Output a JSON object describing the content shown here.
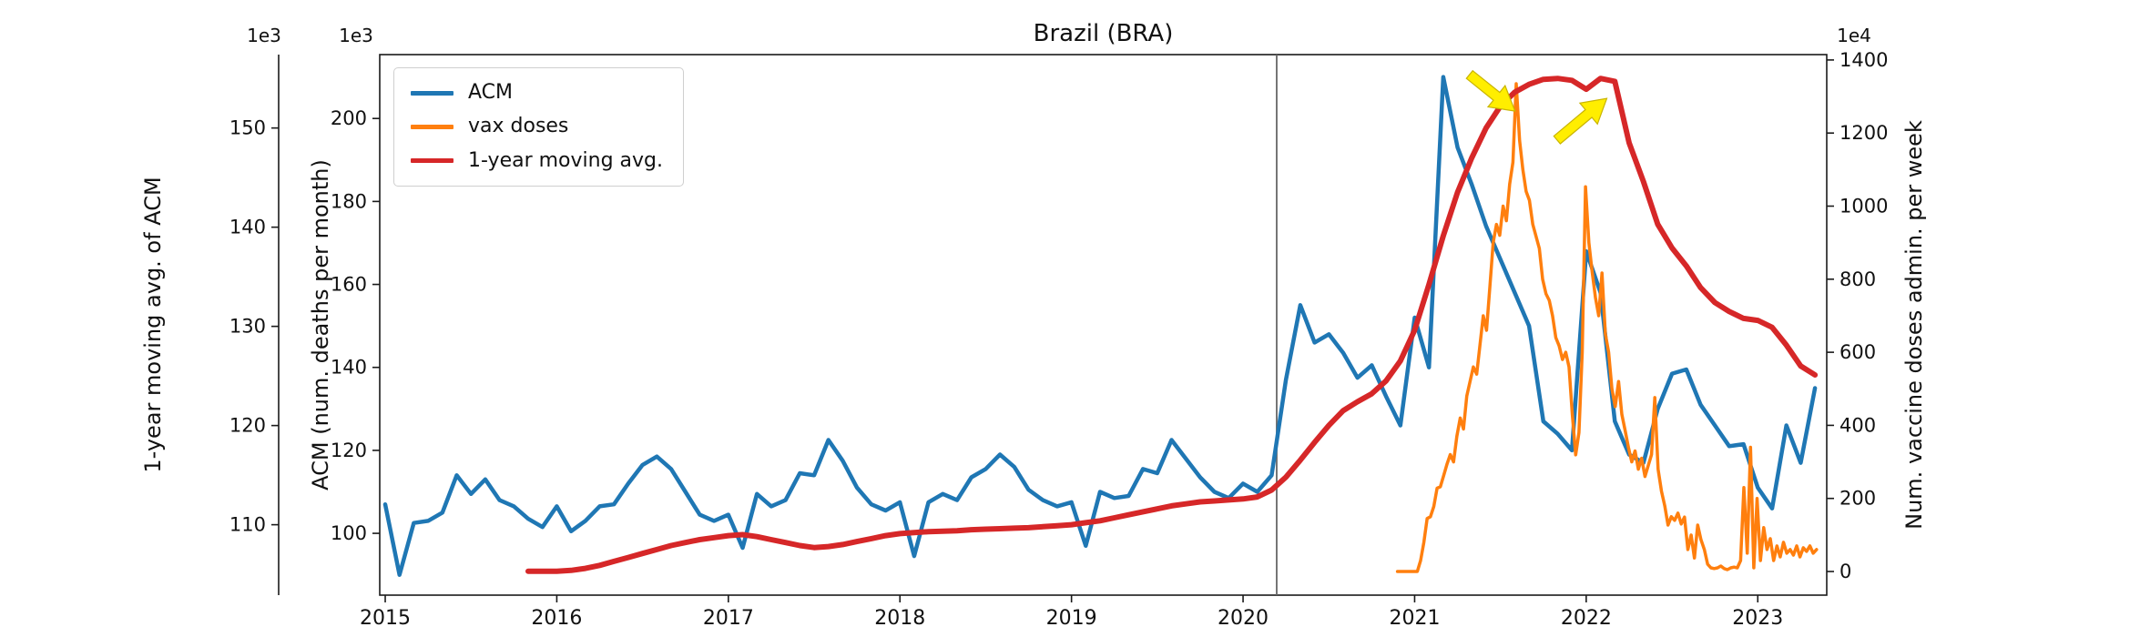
{
  "title": "Brazil (BRA)",
  "legend": {
    "items": [
      {
        "label": "ACM",
        "color": "#1f77b4"
      },
      {
        "label": "vax doses",
        "color": "#ff7f0e"
      },
      {
        "label": "1-year moving avg.",
        "color": "#d62728"
      }
    ]
  },
  "axes": {
    "x": {
      "ticks": [
        2015,
        2016,
        2017,
        2018,
        2019,
        2020,
        2021,
        2022,
        2023
      ],
      "range": [
        2014.968,
        2023.402
      ]
    },
    "acm": {
      "label": "ACM (num. deaths per month)",
      "offset_text": "1e3",
      "ticks": [
        100,
        120,
        140,
        160,
        180,
        200
      ],
      "range": [
        85.1,
        215.4
      ]
    },
    "mavg": {
      "label": "1-year moving avg. of ACM",
      "offset_text": "1e3",
      "ticks": [
        110,
        120,
        130,
        140,
        150
      ],
      "range": [
        102.9,
        157.4
      ]
    },
    "vax": {
      "label": "Num. vaccine doses admin. per week",
      "offset_text": "1e4",
      "ticks": [
        0,
        200,
        400,
        600,
        800,
        1000,
        1200,
        1400
      ],
      "range": [
        -64.7,
        1414.7
      ]
    }
  },
  "chart_data": {
    "type": "line",
    "title": "Brazil (BRA)",
    "x_axis_unit": "year",
    "grid": false,
    "legend_position": "upper left",
    "annotations": {
      "pandemic_vline_year": 2020.196,
      "vline_color": "#666666",
      "arrow_color": "#ffee00",
      "arrow_outline": "#c9b400",
      "arrows": [
        {
          "name": "vax-peak-arrow",
          "tail": {
            "year": 2021.32,
            "vax": 1360
          },
          "tip": {
            "year": 2021.585,
            "vax": 1260
          }
        },
        {
          "name": "mavg-drop-arrow",
          "tail": {
            "year": 2021.83,
            "vax": 1181
          },
          "tip": {
            "year": 2022.12,
            "vax": 1295
          }
        }
      ]
    },
    "series": [
      {
        "name": "ACM",
        "axis": "acm",
        "color": "#1f77b4",
        "width": 4.5,
        "x_start": 2015.0,
        "x_step_years": 0.0833333,
        "unit": "1e3 deaths per month",
        "values": [
          107,
          90,
          102.5,
          103,
          105,
          114,
          109.5,
          113,
          108,
          106.5,
          103.5,
          101.5,
          106.5,
          100.5,
          103,
          106.5,
          107,
          112,
          116.5,
          118.5,
          115.5,
          110,
          104.5,
          103,
          104.5,
          96.5,
          109.5,
          106.5,
          108,
          114.5,
          114,
          122.5,
          117.5,
          111,
          107,
          105.5,
          107.5,
          94.5,
          107.5,
          109.5,
          108,
          113.5,
          115.5,
          119,
          116,
          110.5,
          108,
          106.5,
          107.5,
          97,
          110,
          108.5,
          109,
          115.5,
          114.5,
          122.5,
          118,
          113.5,
          110,
          108.5,
          112,
          110,
          114,
          137,
          155,
          146,
          148,
          143.5,
          137.5,
          140.5,
          133,
          126,
          152,
          140,
          210,
          193,
          184,
          174,
          166,
          158,
          150,
          127,
          124,
          120,
          168,
          158,
          127,
          119,
          117,
          130,
          138.5,
          139.5,
          131,
          126,
          121,
          121.5,
          111,
          106,
          126,
          117,
          135
        ]
      },
      {
        "name": "vax doses",
        "axis": "vax",
        "color": "#ff7f0e",
        "width": 3.5,
        "x_start": 2020.9,
        "x_step_years": 0.0192308,
        "unit": "1e4 doses per week",
        "values": [
          0,
          0,
          0,
          0,
          0,
          0,
          0,
          30,
          80,
          145,
          150,
          178,
          228,
          232,
          262,
          294,
          320,
          300,
          370,
          420,
          390,
          480,
          520,
          560,
          540,
          620,
          700,
          660,
          780,
          900,
          950,
          920,
          1000,
          960,
          1060,
          1120,
          1335,
          1180,
          1100,
          1040,
          1016,
          950,
          917,
          884,
          800,
          760,
          742,
          700,
          640,
          618,
          580,
          600,
          560,
          430,
          319,
          380,
          600,
          1053,
          900,
          820,
          750,
          700,
          817,
          650,
          600,
          500,
          451,
          520,
          430,
          386,
          340,
          300,
          330,
          280,
          310,
          260,
          290,
          320,
          476,
          280,
          220,
          180,
          127,
          150,
          140,
          160,
          130,
          149,
          60,
          100,
          37,
          127,
          87,
          60,
          20,
          10,
          8,
          10,
          15,
          8,
          5,
          10,
          12,
          10,
          30,
          230,
          50,
          340,
          10,
          200,
          30,
          120,
          60,
          90,
          30,
          70,
          40,
          80,
          50,
          60,
          45,
          70,
          40,
          65,
          55,
          70,
          50,
          60
        ]
      },
      {
        "name": "1-year moving avg.",
        "axis": "mavg",
        "color": "#d62728",
        "width": 6,
        "x_start": 2015.8333,
        "x_step_years": 0.0833333,
        "unit": "1e3 deaths per month",
        "values": [
          105.3,
          105.3,
          105.3,
          105.4,
          105.6,
          105.9,
          106.3,
          106.7,
          107.1,
          107.5,
          107.9,
          108.2,
          108.5,
          108.7,
          108.9,
          109.0,
          108.8,
          108.5,
          108.2,
          107.9,
          107.7,
          107.8,
          108.0,
          108.3,
          108.6,
          108.9,
          109.1,
          109.2,
          109.3,
          109.35,
          109.4,
          109.5,
          109.55,
          109.6,
          109.65,
          109.7,
          109.8,
          109.9,
          110.0,
          110.2,
          110.4,
          110.7,
          111.0,
          111.3,
          111.6,
          111.9,
          112.1,
          112.3,
          112.4,
          112.5,
          112.6,
          112.8,
          113.5,
          114.8,
          116.5,
          118.3,
          120.0,
          121.5,
          122.4,
          123.2,
          124.5,
          126.5,
          129.6,
          134.2,
          139.1,
          143.5,
          147.0,
          150.0,
          152.2,
          153.6,
          154.4,
          154.9,
          155.0,
          154.8,
          153.9,
          155.0,
          154.7,
          148.5,
          144.6,
          140.3,
          137.9,
          136.1,
          133.9,
          132.4,
          131.5,
          130.8,
          130.6,
          129.9,
          128.1,
          126.0,
          125.1
        ]
      }
    ]
  }
}
